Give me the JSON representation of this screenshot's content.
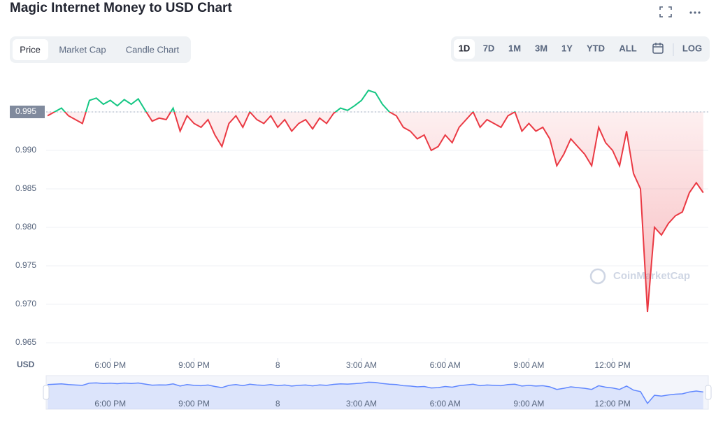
{
  "header": {
    "title": "Magic Internet Money to USD Chart"
  },
  "tabs": [
    "Price",
    "Market Cap",
    "Candle Chart"
  ],
  "ranges": [
    "1D",
    "7D",
    "1M",
    "3M",
    "1Y",
    "YTD",
    "ALL"
  ],
  "log_button": "LOG",
  "chart_data": {
    "type": "line",
    "y_label": "USD",
    "watermark": "CoinMarketCap",
    "reference": {
      "value": 0.995,
      "label": "0.995"
    },
    "color_up": "#16c784",
    "color_down": "#ea3943",
    "navigator_color": "#6188ff",
    "grid": true,
    "xlim": [
      -8.3,
      15.43
    ],
    "ylim": [
      0.963,
      1.001
    ],
    "xticks": [
      {
        "value": -6,
        "label": "6:00 PM"
      },
      {
        "value": -3,
        "label": "9:00 PM"
      },
      {
        "value": 0,
        "label": "8"
      },
      {
        "value": 3,
        "label": "3:00 AM"
      },
      {
        "value": 6,
        "label": "6:00 AM"
      },
      {
        "value": 9,
        "label": "9:00 AM"
      },
      {
        "value": 12,
        "label": "12:00 PM"
      }
    ],
    "yticks": [
      0.995,
      {
        "value": 0.99,
        "label": "0.990"
      },
      0.985,
      {
        "value": 0.98,
        "label": "0.980"
      },
      0.975,
      {
        "value": 0.97,
        "label": "0.970"
      },
      0.965
    ],
    "x": [
      -8.25,
      -8,
      -7.75,
      -7.5,
      -7.25,
      -7,
      -6.75,
      -6.5,
      -6.25,
      -6,
      -5.75,
      -5.5,
      -5.25,
      -5,
      -4.75,
      -4.5,
      -4.25,
      -4,
      -3.75,
      -3.5,
      -3.25,
      -3,
      -2.75,
      -2.5,
      -2.25,
      -2,
      -1.75,
      -1.5,
      -1.25,
      -1,
      -0.75,
      -0.5,
      -0.25,
      0,
      0.25,
      0.5,
      0.75,
      1,
      1.25,
      1.5,
      1.75,
      2,
      2.25,
      2.5,
      2.75,
      3,
      3.25,
      3.5,
      3.75,
      4,
      4.25,
      4.5,
      4.75,
      5,
      5.25,
      5.5,
      5.75,
      6,
      6.25,
      6.5,
      6.75,
      7,
      7.25,
      7.5,
      7.75,
      8,
      8.25,
      8.5,
      8.75,
      9,
      9.25,
      9.5,
      9.75,
      10,
      10.25,
      10.5,
      10.75,
      11,
      11.25,
      11.5,
      11.75,
      12,
      12.25,
      12.5,
      12.75,
      13,
      13.25,
      13.5,
      13.75,
      14,
      14.25,
      14.5,
      14.75,
      15,
      15.25
    ],
    "values": [
      0.9945,
      0.995,
      0.9955,
      0.9945,
      0.994,
      0.9935,
      0.9965,
      0.9968,
      0.996,
      0.9965,
      0.9958,
      0.9966,
      0.996,
      0.9967,
      0.9952,
      0.9938,
      0.9942,
      0.994,
      0.9955,
      0.9925,
      0.9945,
      0.9935,
      0.993,
      0.994,
      0.992,
      0.9905,
      0.9935,
      0.9945,
      0.993,
      0.995,
      0.994,
      0.9935,
      0.9945,
      0.993,
      0.994,
      0.9925,
      0.9935,
      0.994,
      0.9928,
      0.9942,
      0.9935,
      0.9948,
      0.9955,
      0.9952,
      0.9958,
      0.9965,
      0.9978,
      0.9975,
      0.996,
      0.995,
      0.9945,
      0.993,
      0.9925,
      0.9915,
      0.992,
      0.99,
      0.9905,
      0.992,
      0.991,
      0.993,
      0.994,
      0.995,
      0.993,
      0.994,
      0.9935,
      0.993,
      0.9945,
      0.995,
      0.9925,
      0.9935,
      0.9925,
      0.993,
      0.9915,
      0.988,
      0.9895,
      0.9915,
      0.9905,
      0.9895,
      0.988,
      0.993,
      0.991,
      0.99,
      0.988,
      0.9925,
      0.987,
      0.985,
      0.969,
      0.98,
      0.979,
      0.9805,
      0.9815,
      0.982,
      0.9845,
      0.9858,
      0.9845
    ]
  }
}
